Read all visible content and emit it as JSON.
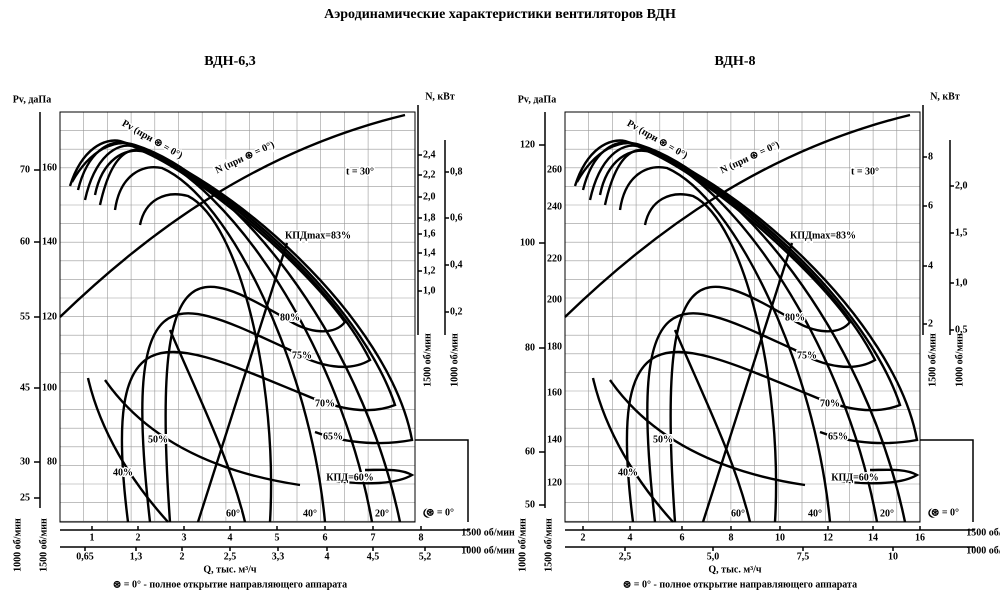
{
  "title": "Аэродинамические характеристики вентиляторов ВДН",
  "note": "⊛ = 0° - полное открытие направляющего аппарата",
  "panels": [
    {
      "title": "ВДН-6,3",
      "pv_label": "Pv, даПа",
      "n_label": "N, кВт",
      "q_label": "Q, тыс. м³/ч",
      "rpm_1500": "1500 об/мин",
      "rpm_1000": "1000 об/мин",
      "pv_1000": [
        "70",
        "60",
        "55",
        "45",
        "30",
        "25"
      ],
      "pv_1500": [
        "160",
        "140",
        "120",
        "100",
        "80"
      ],
      "n_1500": [
        "2,4",
        "2,2",
        "2,0",
        "1,8",
        "1,6",
        "1,4",
        "1,2",
        "1,0"
      ],
      "n_1000": [
        "0,8",
        "0,6",
        "0,4",
        "0,2"
      ],
      "q_1500": [
        "1",
        "2",
        "3",
        "4",
        "5",
        "6",
        "7",
        "8"
      ],
      "q_1000": [
        "0,65",
        "1,3",
        "2",
        "2,5",
        "3,3",
        "4",
        "4,5",
        "5,2"
      ],
      "annotations": {
        "pv_curve": "Pv (при ⊛ = 0°)",
        "n_curve": "N (при ⊛ = 0°)",
        "t": "t = 30°",
        "eta_max": "КПДmax=83%",
        "e80": "80%",
        "e75": "75%",
        "e70": "70%",
        "e65": "65%",
        "e60": "КПД=60%",
        "e50": "50%",
        "e40": "40%",
        "a60": "60°",
        "a40": "40°",
        "a20": "20°",
        "a0": "⊛ = 0°"
      }
    },
    {
      "title": "ВДН-8",
      "pv_label": "Pv, даПа",
      "n_label": "N, кВт",
      "q_label": "Q, тыс. м³/ч",
      "rpm_1500": "1500 об/мин",
      "rpm_1000": "1000 об/мин",
      "pv_1000": [
        "120",
        "100",
        "80",
        "60",
        "50"
      ],
      "pv_1500": [
        "260",
        "240",
        "220",
        "200",
        "180",
        "160",
        "140",
        "120"
      ],
      "n_1500": [
        "8",
        "6",
        "4",
        "2"
      ],
      "n_1000": [
        "2,0",
        "1,5",
        "1,0",
        "0,5"
      ],
      "q_1500": [
        "2",
        "4",
        "6",
        "8",
        "10",
        "12",
        "14",
        "16"
      ],
      "q_1000": [
        "2,5",
        "5,0",
        "7,5",
        "10"
      ],
      "annotations": {
        "pv_curve": "Pv (при ⊛ = 0°)",
        "n_curve": "N (при ⊛ = 0°)",
        "t": "t = 30°",
        "eta_max": "КПДmax=83%",
        "e80": "80%",
        "e75": "75%",
        "e70": "70%",
        "e65": "65%",
        "e60": "КПД=60%",
        "e50": "50%",
        "e40": "40%",
        "a60": "60°",
        "a40": "40°",
        "a20": "20°",
        "a0": "⊛ = 0°"
      }
    }
  ]
}
